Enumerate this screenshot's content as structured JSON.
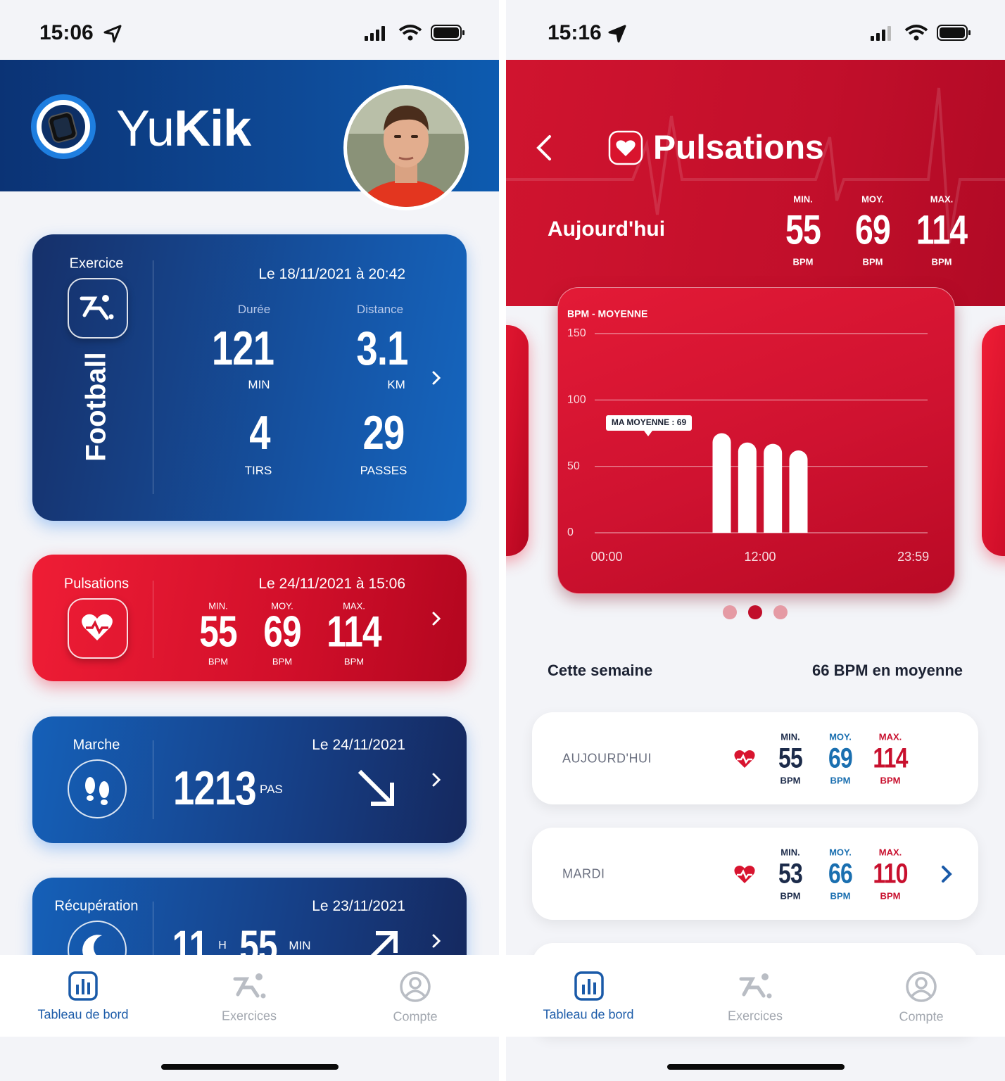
{
  "left": {
    "status_time": "15:06",
    "brand_light": "Yu",
    "brand_bold": "Kik",
    "exercise_card": {
      "label": "Exercice",
      "sport": "Football",
      "date": "Le 18/11/2021 à 20:42",
      "stats": [
        {
          "label": "Durée",
          "value": 121,
          "unit": "MIN"
        },
        {
          "label": "Distance",
          "value": 3.1,
          "unit": "KM"
        },
        {
          "value": 4,
          "unit": "TIRS"
        },
        {
          "value": 29,
          "unit": "PASSES"
        }
      ]
    },
    "pulse_card": {
      "label": "Pulsations",
      "date": "Le 24/11/2021 à 15:06",
      "stats": [
        {
          "label": "MIN.",
          "value": 55,
          "unit": "BPM"
        },
        {
          "label": "MOY.",
          "value": 69,
          "unit": "BPM"
        },
        {
          "label": "MAX.",
          "value": 114,
          "unit": "BPM"
        }
      ]
    },
    "walk_card": {
      "label": "Marche",
      "date": "Le 24/11/2021",
      "value": 1213,
      "unit": "PAS"
    },
    "recovery_card": {
      "label": "Récupération",
      "date": "Le 23/11/2021",
      "hours": 11,
      "hours_unit": "H",
      "minutes": 55,
      "minutes_unit": "MIN"
    },
    "tabs": [
      "Tableau de bord",
      "Exercices",
      "Compte"
    ]
  },
  "right": {
    "status_time": "15:16",
    "title": "Pulsations",
    "today_label": "Aujourd'hui",
    "today_stats": [
      {
        "label": "MIN.",
        "value": 55,
        "unit": "BPM"
      },
      {
        "label": "MOY.",
        "value": 69,
        "unit": "BPM"
      },
      {
        "label": "MAX.",
        "value": 114,
        "unit": "BPM"
      }
    ],
    "week_label": "Cette semaine",
    "week_summary": "66 BPM en moyenne",
    "days": [
      {
        "name": "AUJOURD'HUI",
        "stats": [
          {
            "label": "MIN.",
            "value": 55,
            "unit": "BPM"
          },
          {
            "label": "MOY.",
            "value": 69,
            "unit": "BPM"
          },
          {
            "label": "MAX.",
            "value": 114,
            "unit": "BPM"
          }
        ]
      },
      {
        "name": "MARDI",
        "stats": [
          {
            "label": "MIN.",
            "value": 53,
            "unit": "BPM"
          },
          {
            "label": "MOY.",
            "value": 66,
            "unit": "BPM"
          },
          {
            "label": "MAX.",
            "value": 110,
            "unit": "BPM"
          }
        ]
      }
    ],
    "tabs": [
      "Tableau de bord",
      "Exercices",
      "Compte"
    ]
  },
  "chart_data": {
    "type": "bar",
    "title": "BPM - MOYENNE",
    "annotation": "MA MOYENNE : 69",
    "x": [
      9,
      11,
      13,
      15
    ],
    "values": [
      75,
      68,
      67,
      62
    ],
    "color": "#ffffff",
    "xlim": [
      0,
      24
    ],
    "xticks": [
      {
        "value": 0,
        "label": "00:00"
      },
      {
        "value": 12,
        "label": "12:00"
      },
      {
        "value": 23.98,
        "label": "23:59"
      }
    ],
    "ylim": [
      0,
      150
    ],
    "yticks": [
      0,
      50,
      100,
      150
    ],
    "grid": true
  }
}
